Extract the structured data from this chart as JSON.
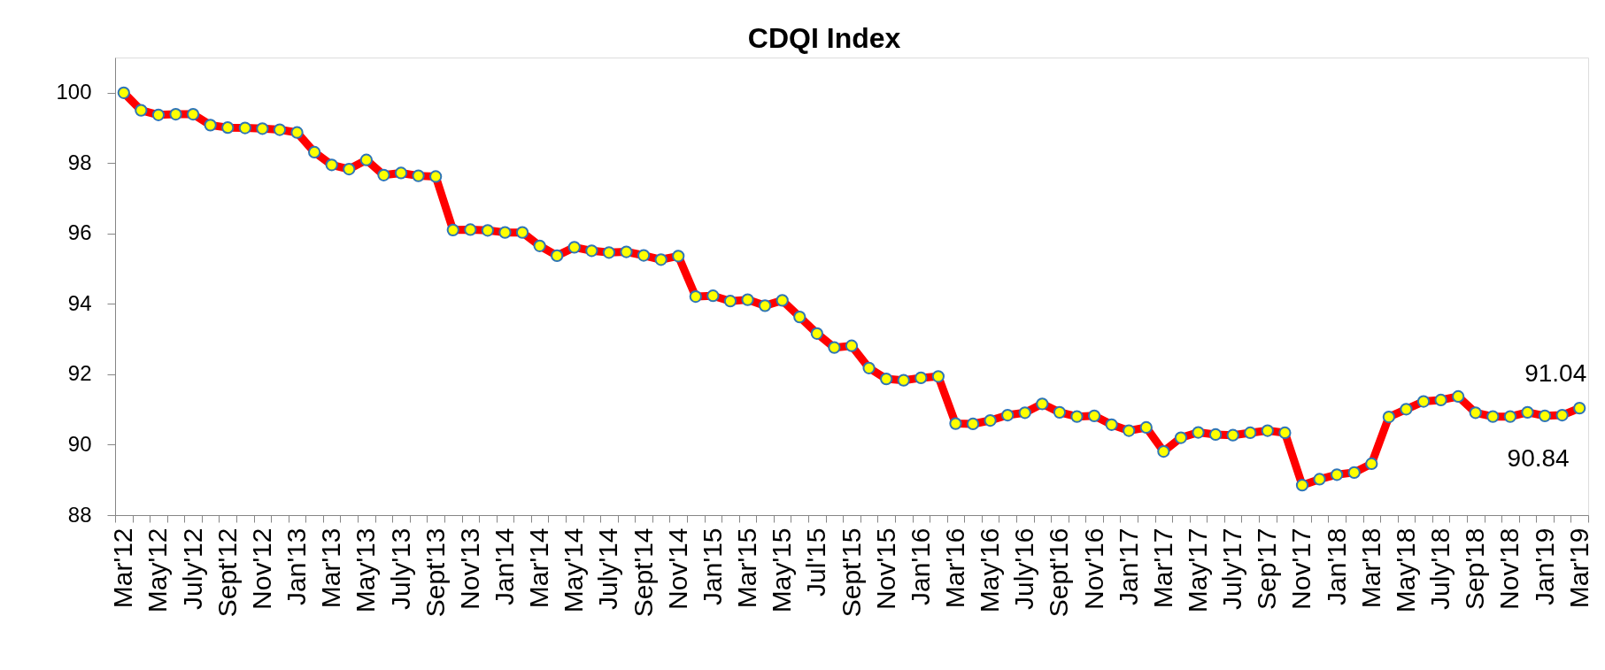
{
  "chart_data": {
    "type": "line",
    "title": "CDQI Index",
    "categories": [
      "Mar'12",
      null,
      "May'12",
      null,
      "July'12",
      null,
      "Sept'12",
      null,
      "Nov'12",
      null,
      "Jan'13",
      null,
      "Mar'13",
      null,
      "May'13",
      null,
      "July'13",
      null,
      "Sept'13",
      null,
      "Nov'13",
      null,
      "Jan'14",
      null,
      "Mar'14",
      null,
      "May'14",
      null,
      "July'14",
      null,
      "Sept'14",
      null,
      "Nov'14",
      null,
      "Jan'15",
      null,
      "Mar'15",
      null,
      "May'15",
      null,
      "Jul'15",
      null,
      "Sept'15",
      null,
      "Nov'15",
      null,
      "Jan'16",
      null,
      "Mar'16",
      null,
      "May'16",
      null,
      "July'16",
      null,
      "Sept'16",
      null,
      "Nov'16",
      null,
      "Jan'17",
      null,
      "Mar'17",
      null,
      "May'17",
      null,
      "July'17",
      null,
      "Sep'17",
      null,
      "Nov'17",
      null,
      "Jan'18",
      null,
      "Mar'18",
      null,
      "May'18",
      null,
      "July'18",
      null,
      "Sep'18",
      null,
      "Nov'18",
      null,
      "Jan'19",
      null,
      "Mar'19"
    ],
    "values": [
      100.0,
      99.5,
      99.37,
      99.39,
      99.39,
      99.08,
      99.01,
      99.0,
      98.98,
      98.95,
      98.87,
      98.31,
      97.95,
      97.83,
      98.09,
      97.66,
      97.72,
      97.64,
      97.62,
      96.1,
      96.11,
      96.09,
      96.03,
      96.03,
      95.65,
      95.37,
      95.61,
      95.51,
      95.46,
      95.48,
      95.38,
      95.26,
      95.36,
      94.21,
      94.23,
      94.08,
      94.12,
      93.95,
      94.1,
      93.63,
      93.16,
      92.76,
      92.81,
      92.18,
      91.87,
      91.83,
      91.9,
      91.94,
      90.6,
      90.59,
      90.69,
      90.84,
      90.91,
      91.16,
      90.92,
      90.8,
      90.82,
      90.57,
      90.4,
      90.49,
      89.81,
      90.2,
      90.35,
      90.29,
      90.27,
      90.34,
      90.4,
      90.34,
      88.85,
      89.02,
      89.15,
      89.21,
      89.46,
      90.79,
      91.01,
      91.23,
      91.27,
      91.37,
      90.91,
      90.8,
      90.8,
      90.92,
      90.82,
      90.84,
      91.04
    ],
    "value_labels": [
      null,
      null,
      null,
      null,
      null,
      null,
      null,
      null,
      null,
      null,
      null,
      null,
      null,
      null,
      null,
      null,
      null,
      null,
      null,
      null,
      null,
      null,
      null,
      null,
      null,
      null,
      null,
      null,
      null,
      null,
      null,
      null,
      null,
      null,
      null,
      null,
      null,
      null,
      null,
      null,
      null,
      null,
      null,
      null,
      null,
      null,
      null,
      null,
      null,
      null,
      null,
      null,
      null,
      null,
      null,
      null,
      null,
      null,
      null,
      null,
      null,
      null,
      null,
      null,
      null,
      null,
      null,
      null,
      null,
      null,
      null,
      null,
      null,
      null,
      null,
      null,
      null,
      null,
      null,
      null,
      null,
      null,
      null,
      "90.84",
      "91.04"
    ],
    "color": "#ff0000",
    "ylim": [
      88,
      101
    ],
    "yticks": [
      88,
      90,
      92,
      94,
      96,
      98,
      100
    ],
    "grid": false,
    "marker": "circle",
    "line_style": "solid"
  }
}
